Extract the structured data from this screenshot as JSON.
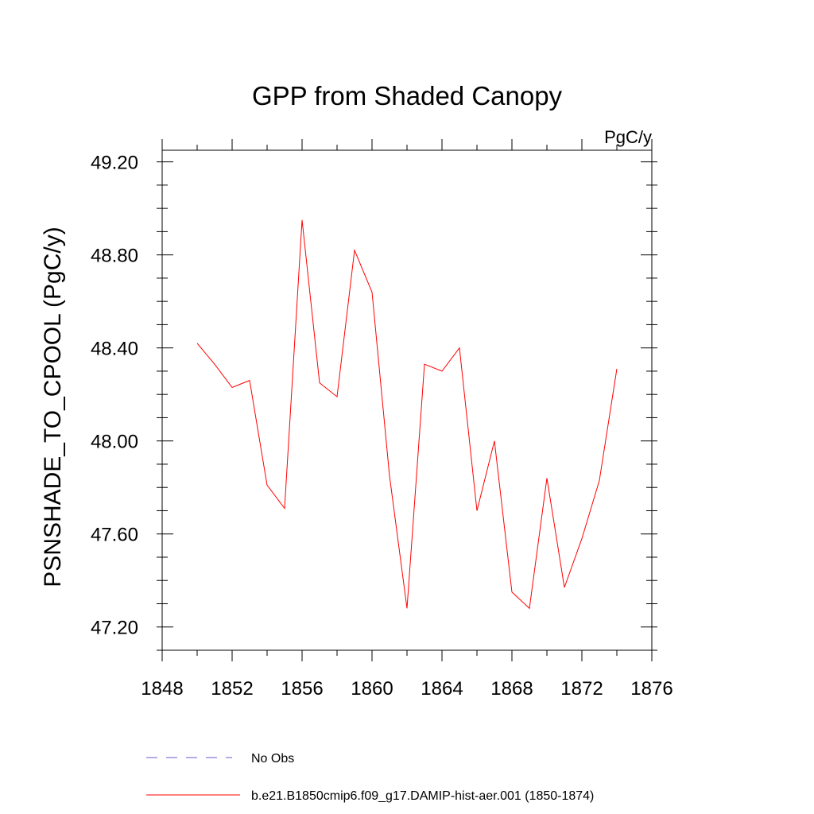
{
  "chart_data": {
    "type": "line",
    "title": "GPP from Shaded Canopy",
    "units_label": "PgC/y",
    "ylabel": "PSNSHADE_TO_CPOOL  (PgC/y)",
    "xlabel": "",
    "xlim": [
      1848,
      1876
    ],
    "ylim": [
      47.1,
      49.25
    ],
    "xticks": [
      1848,
      1852,
      1856,
      1860,
      1864,
      1868,
      1872,
      1876
    ],
    "xtick_labels": [
      "1848",
      "1852",
      "1856",
      "1860",
      "1864",
      "1868",
      "1872",
      "1876"
    ],
    "yticks": [
      47.2,
      47.6,
      48.0,
      48.4,
      48.8,
      49.2
    ],
    "ytick_labels": [
      "47.20",
      "47.60",
      "48.00",
      "48.40",
      "48.80",
      "49.20"
    ],
    "grid": false,
    "legend_position": "bottom",
    "series": [
      {
        "name": "b.e21.B1850cmip6.f09_g17.DAMIP-hist-aer.001 (1850-1874)",
        "color": "#ff0000",
        "dash": "solid",
        "x": [
          1850,
          1851,
          1852,
          1853,
          1854,
          1855,
          1856,
          1857,
          1858,
          1859,
          1860,
          1861,
          1862,
          1863,
          1864,
          1865,
          1866,
          1867,
          1868,
          1869,
          1870,
          1871,
          1872,
          1873,
          1874
        ],
        "y": [
          48.42,
          48.33,
          48.23,
          48.26,
          47.81,
          47.71,
          48.95,
          48.25,
          48.19,
          48.82,
          48.64,
          47.85,
          47.28,
          48.33,
          48.3,
          48.4,
          47.7,
          48.0,
          47.35,
          47.28,
          47.84,
          47.37,
          47.58,
          47.83,
          48.31
        ]
      }
    ],
    "legend": [
      {
        "label": "No Obs",
        "color": "#6a5acd",
        "dash": "dashed"
      },
      {
        "label": "b.e21.B1850cmip6.f09_g17.DAMIP-hist-aer.001 (1850-1874)",
        "color": "#ff0000",
        "dash": "solid"
      }
    ]
  }
}
